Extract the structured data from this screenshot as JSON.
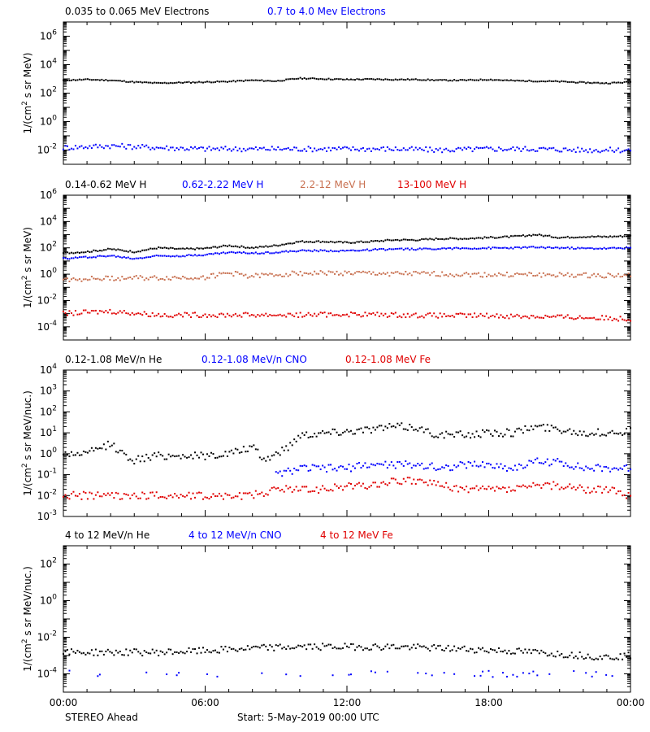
{
  "chart_data": [
    {
      "type": "scatter",
      "ylabel": "1/(cm2 s sr MeV)",
      "yscale": "log",
      "ylim": [
        0.001,
        10000000
      ],
      "ytick_exps": [
        -2,
        0,
        2,
        4,
        6
      ],
      "legend": "top-left",
      "series": [
        {
          "name": "0.035 to 0.065 MeV Electrons",
          "color": "#000000",
          "x_hours": [
            0,
            1,
            2,
            3,
            4,
            5,
            6,
            7,
            8,
            9,
            10,
            11,
            12,
            13,
            14,
            15,
            16,
            17,
            18,
            19,
            20,
            21,
            22,
            23,
            24
          ],
          "values": [
            800,
            900,
            800,
            600,
            500,
            550,
            600,
            650,
            800,
            700,
            1100,
            1000,
            900,
            950,
            900,
            900,
            800,
            800,
            900,
            750,
            700,
            650,
            550,
            500,
            600
          ]
        },
        {
          "name": "0.7 to 4.0 Mev Electrons",
          "color": "#0000ff",
          "x_hours": [
            0,
            2,
            4,
            6,
            8,
            10,
            12,
            14,
            16,
            18,
            20,
            22,
            24
          ],
          "values": [
            0.015,
            0.02,
            0.015,
            0.012,
            0.012,
            0.012,
            0.012,
            0.012,
            0.01,
            0.012,
            0.012,
            0.01,
            0.01
          ]
        }
      ]
    },
    {
      "type": "scatter",
      "ylabel": "1/(cm2 s sr MeV)",
      "yscale": "log",
      "ylim": [
        1e-05,
        1000000
      ],
      "ytick_exps": [
        -4,
        -2,
        0,
        2,
        4,
        6
      ],
      "legend": "top-left",
      "series": [
        {
          "name": "0.14-0.62 MeV H",
          "color": "#000000",
          "x_hours": [
            0,
            1,
            2,
            3,
            4,
            5,
            6,
            7,
            8,
            9,
            10,
            11,
            12,
            13,
            14,
            15,
            16,
            17,
            18,
            19,
            20,
            21,
            22,
            23,
            24
          ],
          "values": [
            40,
            50,
            80,
            50,
            100,
            80,
            90,
            150,
            100,
            150,
            300,
            300,
            250,
            300,
            400,
            400,
            500,
            500,
            600,
            700,
            1000,
            600,
            700,
            700,
            800
          ]
        },
        {
          "name": "0.62-2.22 MeV H",
          "color": "#0000ff",
          "x_hours": [
            0,
            1,
            2,
            3,
            4,
            5,
            6,
            7,
            8,
            9,
            10,
            11,
            12,
            13,
            14,
            15,
            16,
            17,
            18,
            19,
            20,
            21,
            22,
            23,
            24
          ],
          "values": [
            15,
            20,
            25,
            15,
            25,
            25,
            30,
            45,
            40,
            45,
            60,
            60,
            60,
            70,
            80,
            80,
            90,
            90,
            95,
            100,
            110,
            100,
            90,
            90,
            100
          ]
        },
        {
          "name": "2.2-12 MeV H",
          "color": "#c87050",
          "x_hours": [
            0,
            2,
            4,
            6,
            7,
            8,
            10,
            12,
            14,
            16,
            18,
            20,
            22,
            24
          ],
          "values": [
            0.4,
            0.5,
            0.5,
            0.6,
            1.2,
            0.7,
            1.2,
            1.2,
            1.1,
            1.0,
            0.9,
            0.9,
            0.8,
            0.8
          ]
        },
        {
          "name": "13-100 MeV H",
          "color": "#e00000",
          "x_hours": [
            0,
            2,
            4,
            6,
            8,
            10,
            12,
            14,
            16,
            18,
            20,
            22,
            24
          ],
          "values": [
            0.001,
            0.0015,
            0.0008,
            0.0008,
            0.0008,
            0.0008,
            0.0009,
            0.0008,
            0.0007,
            0.0007,
            0.0006,
            0.0005,
            0.0004
          ]
        }
      ]
    },
    {
      "type": "scatter",
      "ylabel": "1/(cm2 s sr MeV/nuc.)",
      "yscale": "log",
      "ylim": [
        0.001,
        10000
      ],
      "ytick_exps": [
        -3,
        -2,
        -1,
        0,
        1,
        2,
        3,
        4
      ],
      "legend": "top-left",
      "series": [
        {
          "name": "0.12-1.08 MeV/n He",
          "color": "#000000",
          "x_hours": [
            0,
            1,
            2,
            2.5,
            3,
            4,
            5,
            6,
            7,
            8,
            8.5,
            9,
            9.5,
            10,
            11,
            12,
            13,
            14,
            15,
            15.5,
            16,
            17,
            18,
            19,
            20,
            21,
            22,
            23,
            24
          ],
          "values": [
            1,
            1,
            3,
            1,
            0.5,
            0.8,
            0.8,
            0.8,
            1,
            2,
            0.5,
            1,
            2,
            8,
            10,
            12,
            15,
            20,
            18,
            10,
            8,
            8,
            10,
            10,
            20,
            15,
            10,
            10,
            12
          ]
        },
        {
          "name": "0.12-1.08 MeV/n CNO",
          "color": "#0000ff",
          "x_hours": [
            9,
            10,
            11,
            12,
            13,
            14,
            15,
            16,
            17,
            18,
            19,
            20,
            21,
            22,
            23,
            24
          ],
          "values": [
            0.1,
            0.2,
            0.2,
            0.2,
            0.3,
            0.3,
            0.3,
            0.2,
            0.3,
            0.3,
            0.2,
            0.4,
            0.4,
            0.2,
            0.2,
            0.2
          ]
        },
        {
          "name": "0.12-1.08 MeV Fe",
          "color": "#e00000",
          "x_hours": [
            0,
            2,
            4,
            6,
            8,
            9,
            10,
            11,
            12,
            13,
            14,
            15,
            16,
            17,
            18,
            19,
            20,
            21,
            22,
            23,
            24
          ],
          "values": [
            0.01,
            0.01,
            0.01,
            0.01,
            0.01,
            0.02,
            0.02,
            0.02,
            0.03,
            0.03,
            0.05,
            0.05,
            0.03,
            0.02,
            0.02,
            0.02,
            0.03,
            0.03,
            0.02,
            0.02,
            0.01
          ]
        }
      ]
    },
    {
      "type": "scatter",
      "ylabel": "1/(cm2 s sr MeV/nuc.)",
      "yscale": "log",
      "ylim": [
        1e-05,
        1000
      ],
      "ytick_exps": [
        -4,
        -2,
        0,
        2
      ],
      "legend": "top-left",
      "series": [
        {
          "name": "4 to 12 MeV/n He",
          "color": "#000000",
          "x_hours": [
            0,
            2,
            4,
            6,
            8,
            10,
            12,
            14,
            16,
            18,
            20,
            22,
            23,
            24
          ],
          "values": [
            0.0015,
            0.0015,
            0.0015,
            0.0018,
            0.0025,
            0.003,
            0.003,
            0.003,
            0.0025,
            0.002,
            0.0015,
            0.001,
            0.0008,
            0.001
          ]
        },
        {
          "name": "4 to 12 MeV/n CNO",
          "color": "#0000ff",
          "x_hours": [
            0,
            3,
            6,
            9,
            12,
            15,
            18,
            21,
            24
          ],
          "values": [
            0.0001,
            0.0001,
            0.0001,
            0.0001,
            0.0001,
            0.0001,
            0.0001,
            0.0001,
            0.0001
          ]
        },
        {
          "name": "4 to 12 MeV Fe",
          "color": "#e00000",
          "x_hours": [],
          "values": []
        }
      ]
    }
  ],
  "xaxis": {
    "range_hours": [
      0,
      24
    ],
    "ticks": [
      {
        "h": 0,
        "label": "00:00"
      },
      {
        "h": 6,
        "label": "06:00"
      },
      {
        "h": 12,
        "label": "12:00"
      },
      {
        "h": 18,
        "label": "18:00"
      },
      {
        "h": 24,
        "label": "00:00"
      }
    ]
  },
  "footer": {
    "spacecraft": "STEREO Ahead",
    "start": "Start:  5-May-2019 00:00 UTC"
  }
}
